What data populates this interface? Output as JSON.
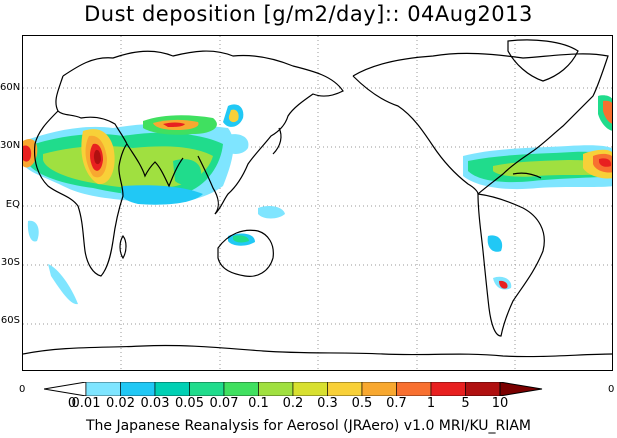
{
  "title": "Dust deposition [g/m2/day]:: 04Aug2013",
  "lat_labels": [
    "60N",
    "30N",
    "EQ",
    "30S",
    "60S"
  ],
  "colorbar": {
    "edge_left": "0",
    "edge_right": "0",
    "ticks": [
      "0",
      "0.01",
      "0.02",
      "0.03",
      "0.05",
      "0.07",
      "0.1",
      "0.2",
      "0.3",
      "0.5",
      "0.7",
      "1",
      "5",
      "10"
    ],
    "colors": [
      "#ffffff",
      "#7fe5ff",
      "#21c8f5",
      "#00d0b4",
      "#20dc8c",
      "#40e060",
      "#a0e040",
      "#d8e030",
      "#f8d038",
      "#f8a830",
      "#f87030",
      "#e82020",
      "#b01010",
      "#7a0000"
    ]
  },
  "credit": "The Japanese Reanalysis for Aerosol (JRAero) v1.0 MRI/KU_RIAM"
}
